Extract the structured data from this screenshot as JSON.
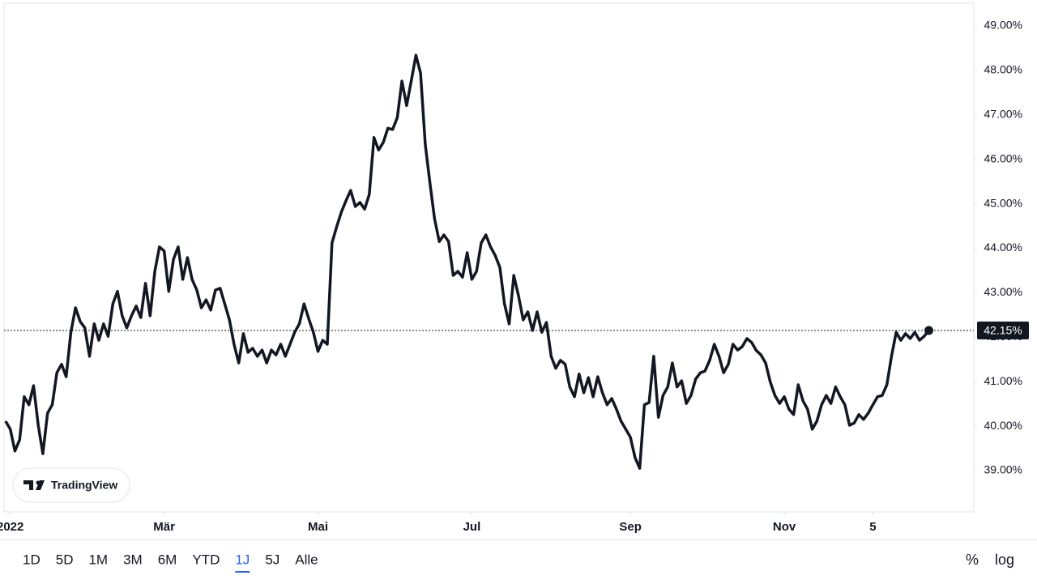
{
  "chart_data": {
    "type": "line",
    "color": "#131722",
    "values": [
      40.11,
      39.93,
      39.44,
      39.69,
      40.66,
      40.48,
      40.91,
      40.02,
      39.38,
      40.29,
      40.48,
      41.2,
      41.39,
      41.11,
      42.11,
      42.66,
      42.35,
      42.21,
      41.57,
      42.3,
      41.93,
      42.3,
      42.02,
      42.75,
      43.03,
      42.48,
      42.21,
      42.48,
      42.7,
      42.44,
      43.21,
      42.48,
      43.48,
      44.03,
      43.94,
      43.03,
      43.75,
      44.03,
      43.3,
      43.79,
      43.3,
      43.06,
      42.66,
      42.84,
      42.61,
      43.06,
      43.1,
      42.75,
      42.39,
      41.84,
      41.42,
      42.08,
      41.66,
      41.75,
      41.57,
      41.71,
      41.42,
      41.71,
      41.6,
      41.84,
      41.57,
      41.84,
      42.11,
      42.3,
      42.75,
      42.42,
      42.11,
      41.68,
      41.93,
      41.84,
      44.12,
      44.48,
      44.81,
      45.07,
      45.3,
      44.94,
      45.03,
      44.88,
      45.21,
      46.49,
      46.21,
      46.38,
      46.7,
      46.67,
      46.94,
      47.76,
      47.21,
      47.76,
      48.34,
      47.94,
      46.34,
      45.48,
      44.66,
      44.15,
      44.3,
      44.15,
      43.39,
      43.48,
      43.35,
      43.9,
      43.3,
      43.48,
      44.12,
      44.3,
      44.03,
      43.84,
      43.57,
      42.75,
      42.3,
      43.39,
      42.93,
      42.39,
      42.57,
      42.15,
      42.57,
      42.11,
      42.33,
      41.57,
      41.3,
      41.48,
      41.39,
      40.88,
      40.66,
      41.17,
      40.75,
      41.09,
      40.66,
      41.11,
      40.75,
      40.48,
      40.62,
      40.38,
      40.11,
      39.93,
      39.75,
      39.29,
      39.05,
      40.48,
      40.53,
      41.57,
      40.2,
      40.69,
      40.88,
      41.42,
      40.88,
      41.02,
      40.51,
      40.69,
      41.06,
      41.2,
      41.24,
      41.48,
      41.84,
      41.57,
      41.2,
      41.39,
      41.84,
      41.71,
      41.79,
      41.97,
      41.88,
      41.7,
      41.6,
      41.42,
      40.99,
      40.69,
      40.51,
      40.66,
      40.38,
      40.26,
      40.93,
      40.57,
      40.38,
      39.93,
      40.11,
      40.48,
      40.69,
      40.51,
      40.88,
      40.66,
      40.48,
      40.02,
      40.07,
      40.26,
      40.15,
      40.29,
      40.48,
      40.66,
      40.69,
      40.93,
      41.57,
      42.11,
      41.93,
      42.08,
      41.97,
      42.11,
      41.93,
      42.02,
      42.15
    ],
    "xlim": [
      -1.2,
      207.3
    ],
    "xticks": [
      {
        "value": 1,
        "label": "2022"
      },
      {
        "value": 34,
        "label": "Mär"
      },
      {
        "value": 67,
        "label": "Mai"
      },
      {
        "value": 100,
        "label": "Jul"
      },
      {
        "value": 134,
        "label": "Sep"
      },
      {
        "value": 167,
        "label": "Nov"
      },
      {
        "value": 186,
        "label": "5"
      }
    ],
    "ylim": [
      38.07,
      49.51
    ],
    "yticks": [
      {
        "value": 39,
        "label": "39.00%"
      },
      {
        "value": 40,
        "label": "40.00%"
      },
      {
        "value": 41,
        "label": "41.00%"
      },
      {
        "value": 42,
        "label": "42.00%"
      },
      {
        "value": 43,
        "label": "43.00%"
      },
      {
        "value": 44,
        "label": "44.00%"
      },
      {
        "value": 45,
        "label": "45.00%"
      },
      {
        "value": 46,
        "label": "46.00%"
      },
      {
        "value": 47,
        "label": "47.00%"
      },
      {
        "value": 48,
        "label": "48.00%"
      },
      {
        "value": 49,
        "label": "49.00%"
      }
    ],
    "last_value": {
      "value": 42.15,
      "label": "42.15%"
    }
  },
  "logo": "TradingView",
  "toolbar": {
    "ranges": [
      "1D",
      "5D",
      "1M",
      "3M",
      "6M",
      "YTD",
      "1J",
      "5J",
      "Alle"
    ],
    "selected_index": 6,
    "options": [
      "%",
      "log"
    ]
  }
}
